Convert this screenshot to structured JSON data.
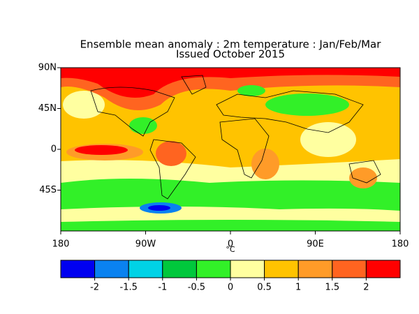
{
  "title": "Ensemble mean anomaly : 2m temperature : Jan/Feb/Mar",
  "subtitle": "Issued October 2015",
  "map": {
    "xlim": [
      -180,
      180
    ],
    "ylim": [
      -90,
      90
    ],
    "xticks": [
      {
        "value": -180,
        "label": "180"
      },
      {
        "value": -90,
        "label": "90W"
      },
      0,
      {
        "value": 90,
        "label": "90E"
      },
      {
        "value": 180,
        "label": "180"
      }
    ],
    "yticks": [
      {
        "value": 90,
        "label": "90N"
      },
      {
        "value": 45,
        "label": "45N"
      },
      0,
      {
        "value": -45,
        "label": "45S"
      }
    ]
  },
  "colorbar": {
    "label": "°C",
    "ticks": [
      -2,
      -1.5,
      -1,
      -0.5,
      0,
      0.5,
      1,
      1.5,
      2
    ],
    "colors": [
      "#0000f0",
      "#0a82f0",
      "#00d2e6",
      "#00c83c",
      "#32f028",
      "#ffffa0",
      "#ffc300",
      "#ff9b28",
      "#ff6420",
      "#ff0000"
    ]
  }
}
